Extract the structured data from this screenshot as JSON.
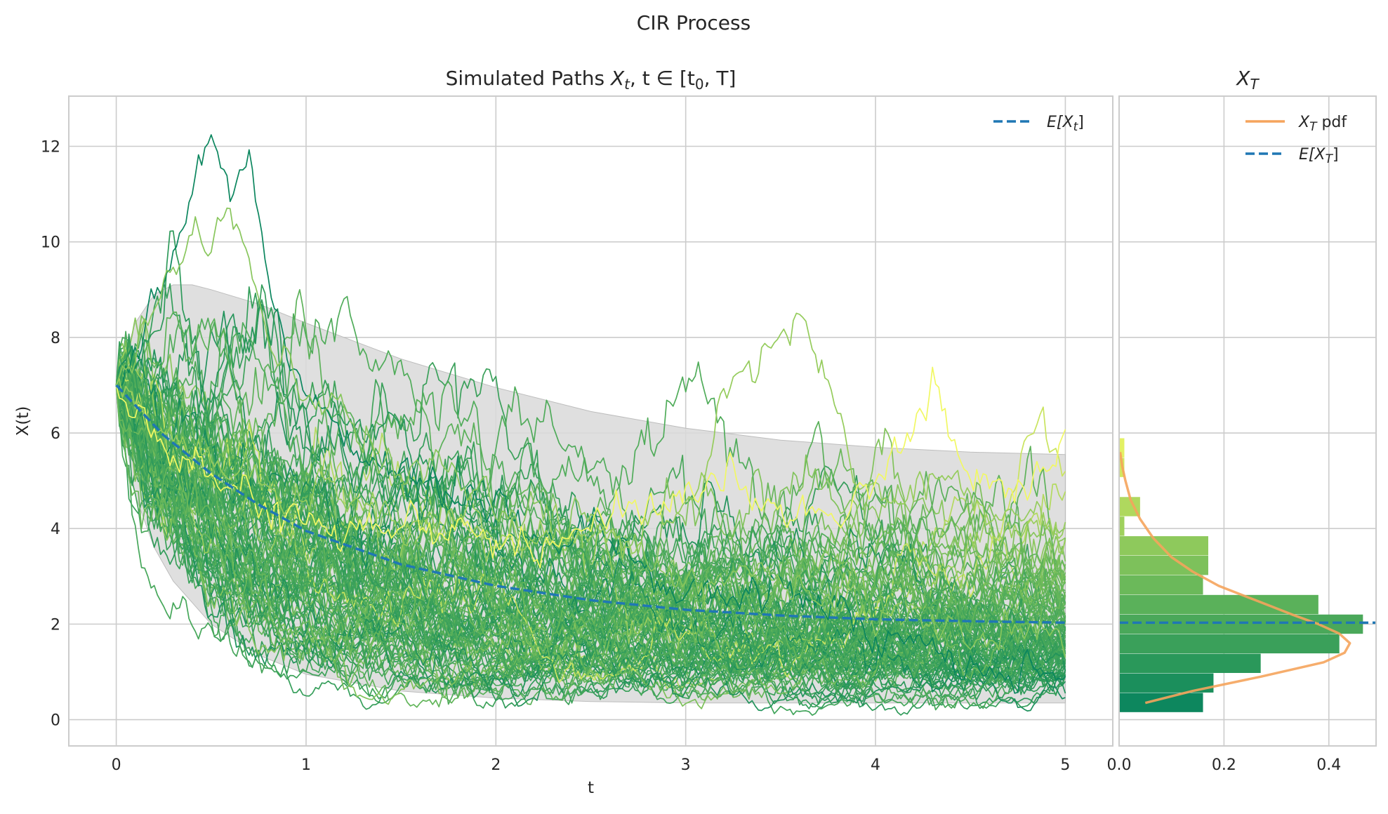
{
  "figure": {
    "suptitle": "CIR Process",
    "colors": {
      "grid": "#cccccc",
      "spine": "#cccccc",
      "band_fill": "#d9d9d9",
      "mean_line": "#1f77b4",
      "pdf_line": "#f5a45c",
      "path_colormap": [
        "#007f5f",
        "#2d9a5a",
        "#5fb35a",
        "#95cc5c",
        "#c7e35f",
        "#ffff66"
      ]
    }
  },
  "chart_data": [
    {
      "type": "line",
      "title": "Simulated Paths X_t, t ∈ [t_0, T]",
      "title_parts": {
        "prefix": "Simulated Paths ",
        "math": "X",
        "sub": "t",
        "mid": ", t ∈ [t",
        "sub2": "0",
        "suffix": ", T]"
      },
      "xlabel": "t",
      "ylabel": "X(t)",
      "xlim": [
        -0.25,
        5.25
      ],
      "ylim": [
        -0.55,
        13.05
      ],
      "xticks": [
        0,
        1,
        2,
        3,
        4,
        5
      ],
      "yticks": [
        0,
        2,
        4,
        6,
        8,
        10,
        12
      ],
      "grid": true,
      "legend_position": "top-right",
      "legend": [
        {
          "label_base": "E[X",
          "label_sub": "t",
          "label_end": "]",
          "style": "dashed"
        }
      ],
      "process": {
        "x0": 7.0,
        "t0": 0,
        "T": 5,
        "n_paths": 100,
        "n_steps": 300,
        "long_run_mean": 2.0
      },
      "expected_value": {
        "t": [
          0,
          0.25,
          0.5,
          0.75,
          1.0,
          1.5,
          2.0,
          2.5,
          3.0,
          3.5,
          4.0,
          4.5,
          5.0
        ],
        "y": [
          7.0,
          5.95,
          5.15,
          4.5,
          3.95,
          3.25,
          2.8,
          2.5,
          2.3,
          2.18,
          2.1,
          2.06,
          2.03
        ]
      },
      "band_upper": {
        "t": [
          0,
          0.1,
          0.2,
          0.3,
          0.4,
          0.5,
          0.75,
          1.0,
          1.5,
          2.0,
          2.5,
          3.0,
          3.5,
          4.0,
          4.5,
          5.0
        ],
        "y": [
          7.0,
          8.3,
          8.9,
          9.1,
          9.1,
          9.0,
          8.7,
          8.3,
          7.55,
          6.95,
          6.45,
          6.1,
          5.85,
          5.7,
          5.6,
          5.55
        ]
      },
      "band_lower": {
        "t": [
          0,
          0.1,
          0.2,
          0.3,
          0.5,
          0.75,
          1.0,
          1.5,
          2.0,
          2.5,
          3.0,
          3.5,
          4.0,
          4.5,
          5.0
        ],
        "y": [
          7.0,
          4.7,
          3.6,
          2.9,
          2.0,
          1.35,
          0.95,
          0.6,
          0.45,
          0.38,
          0.35,
          0.35,
          0.35,
          0.35,
          0.35
        ]
      },
      "highlighted_paths": [
        {
          "t": [
            0,
            0.1,
            0.2,
            0.3,
            0.4,
            0.5,
            0.6,
            0.7,
            0.8,
            0.9,
            1.0,
            1.2,
            1.5,
            2.0,
            2.5,
            3.0,
            3.5,
            4.0,
            4.5,
            5.0
          ],
          "y": [
            7.0,
            7.8,
            8.5,
            9.6,
            10.8,
            12.45,
            10.9,
            12.0,
            9.6,
            7.8,
            6.8,
            5.9,
            5.2,
            4.4,
            3.8,
            2.9,
            2.4,
            1.8,
            1.3,
            0.6
          ]
        },
        {
          "t": [
            0,
            0.1,
            0.25,
            0.4,
            0.5,
            0.6,
            0.7,
            0.8,
            0.9,
            1.0,
            1.2,
            1.5,
            2.0,
            2.5,
            3.0,
            3.5,
            4.0,
            4.5,
            5.0
          ],
          "y": [
            7.0,
            7.5,
            9.2,
            10.6,
            10.2,
            10.6,
            10.0,
            8.1,
            7.5,
            6.8,
            6.3,
            5.6,
            4.8,
            3.9,
            3.1,
            2.8,
            2.4,
            2.0,
            1.6
          ]
        },
        {
          "t": [
            0,
            0.2,
            0.5,
            0.8,
            1.0,
            1.5,
            2.0,
            2.5,
            3.0,
            3.2,
            3.4,
            3.5,
            3.6,
            3.7,
            3.9,
            4.0,
            4.3,
            4.6,
            5.0
          ],
          "y": [
            7.0,
            6.2,
            5.5,
            5.0,
            4.6,
            4.2,
            4.0,
            3.8,
            4.4,
            6.8,
            7.6,
            8.1,
            8.7,
            7.4,
            5.4,
            4.9,
            5.2,
            4.3,
            4.1
          ]
        },
        {
          "t": [
            0,
            0.3,
            0.6,
            1.0,
            1.5,
            2.0,
            2.5,
            2.8,
            3.0,
            3.5,
            4.0,
            4.2,
            4.3,
            4.5,
            4.8,
            5.0
          ],
          "y": [
            7.0,
            5.6,
            4.7,
            4.1,
            3.8,
            4.0,
            3.9,
            4.2,
            4.9,
            4.5,
            4.7,
            6.0,
            7.1,
            5.2,
            4.8,
            5.8
          ]
        }
      ]
    },
    {
      "type": "bar",
      "orientation": "horizontal",
      "title": "X_T",
      "title_parts": {
        "math": "X",
        "sub": "T"
      },
      "xlim": [
        0,
        0.49
      ],
      "ylim": [
        -0.55,
        13.05
      ],
      "xticks": [
        0.0,
        0.2,
        0.4
      ],
      "xtick_labels": [
        "0.0",
        "0.2",
        "0.4"
      ],
      "grid": true,
      "legend_position": "top-right",
      "legend": [
        {
          "label_base": "X",
          "label_sub": "T",
          "label_end": " pdf",
          "style": "solid"
        },
        {
          "label_base": "E[X",
          "label_sub": "T",
          "label_end": "]",
          "style": "dashed"
        }
      ],
      "bins": [
        {
          "from": 0.15,
          "to": 0.56,
          "density": 0.16
        },
        {
          "from": 0.56,
          "to": 0.97,
          "density": 0.18
        },
        {
          "from": 0.97,
          "to": 1.38,
          "density": 0.27
        },
        {
          "from": 1.38,
          "to": 1.79,
          "density": 0.42
        },
        {
          "from": 1.79,
          "to": 2.2,
          "density": 0.465
        },
        {
          "from": 2.2,
          "to": 2.61,
          "density": 0.38
        },
        {
          "from": 2.61,
          "to": 3.02,
          "density": 0.16
        },
        {
          "from": 3.02,
          "to": 3.43,
          "density": 0.17
        },
        {
          "from": 3.43,
          "to": 3.84,
          "density": 0.17
        },
        {
          "from": 3.84,
          "to": 4.25,
          "density": 0.01
        },
        {
          "from": 4.25,
          "to": 4.66,
          "density": 0.04
        },
        {
          "from": 4.66,
          "to": 5.07,
          "density": 0.0
        },
        {
          "from": 5.07,
          "to": 5.48,
          "density": 0.01
        },
        {
          "from": 5.48,
          "to": 5.89,
          "density": 0.01
        }
      ],
      "pdf": {
        "y": [
          0.35,
          0.6,
          0.9,
          1.2,
          1.4,
          1.6,
          1.8,
          2.0,
          2.2,
          2.5,
          2.8,
          3.1,
          3.4,
          3.8,
          4.2,
          4.6,
          5.0,
          5.3,
          5.6
        ],
        "density": [
          0.05,
          0.14,
          0.27,
          0.39,
          0.43,
          0.44,
          0.42,
          0.38,
          0.33,
          0.26,
          0.19,
          0.14,
          0.1,
          0.065,
          0.04,
          0.022,
          0.012,
          0.006,
          0.002
        ]
      },
      "expected_value": 2.03
    }
  ]
}
